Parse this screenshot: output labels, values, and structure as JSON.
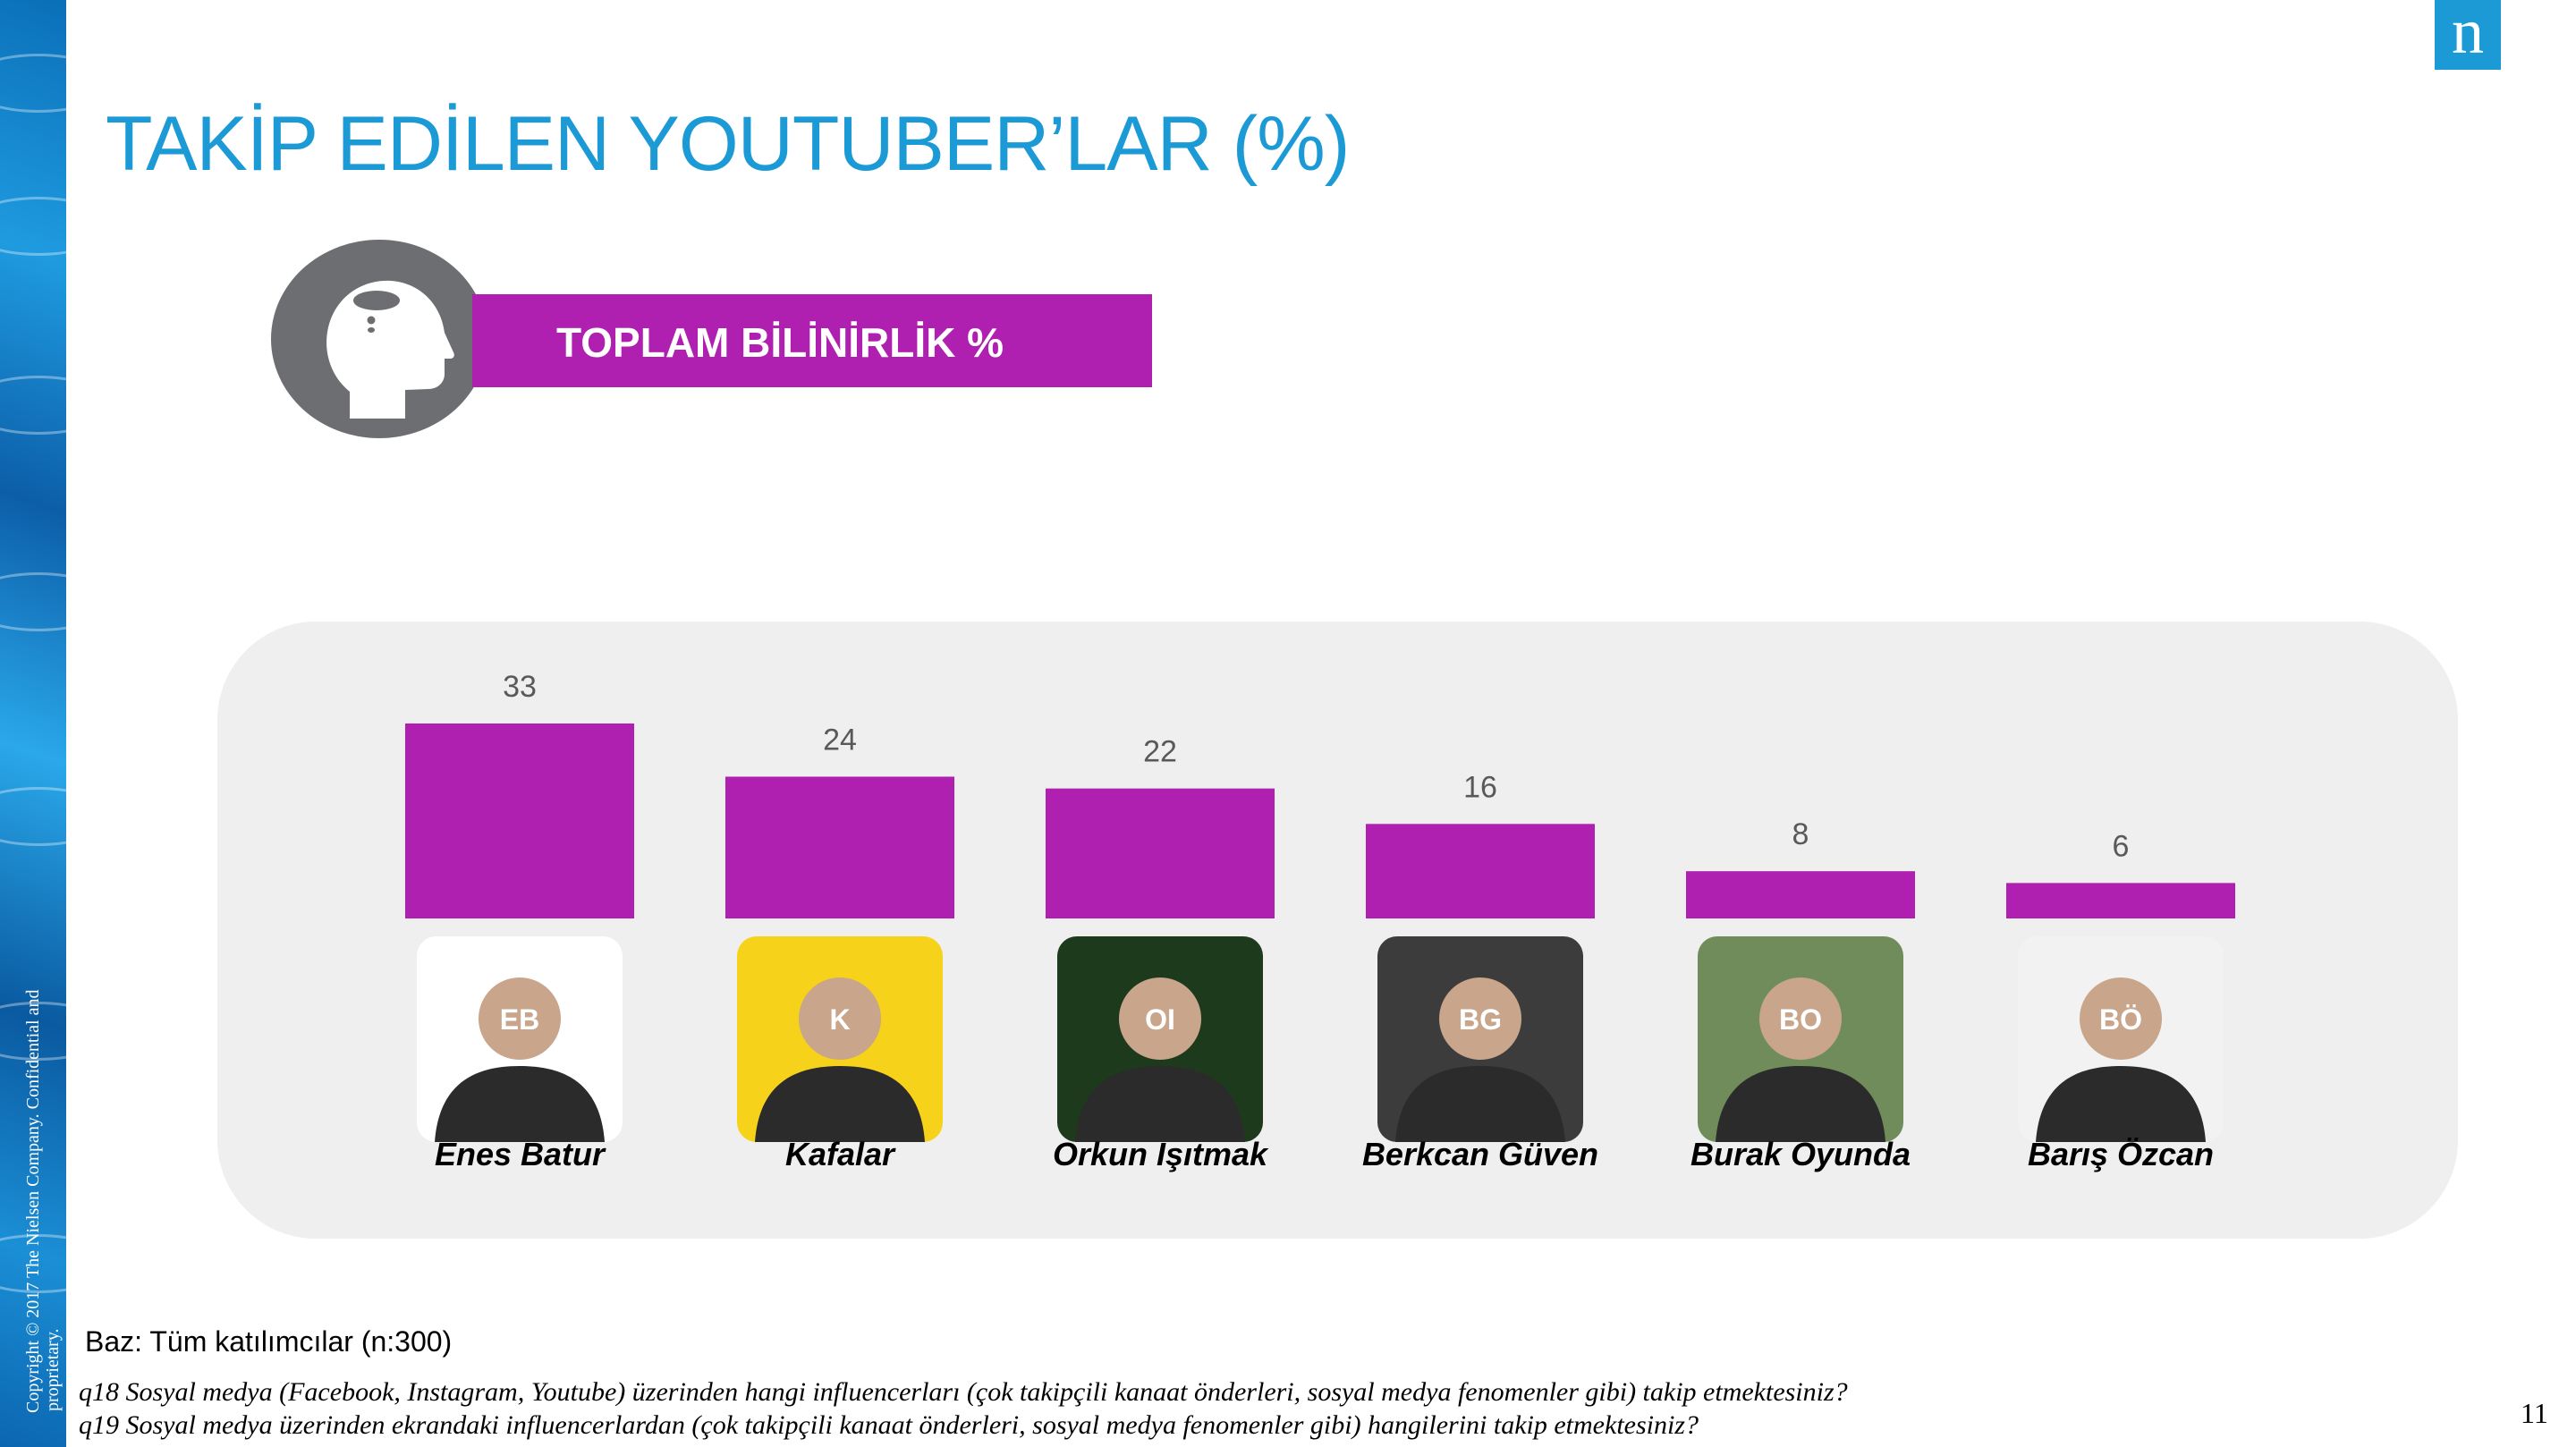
{
  "slide": {
    "title": "TAKİP EDİLEN YOUTUBER’LAR (%)",
    "banner_label": "TOPLAM BİLİNİRLİK %",
    "logo_letter": "n",
    "page_number": "11",
    "copyright": [
      "Copyright © 2017 The Nielsen Company. Confidential and",
      "proprietary."
    ],
    "base_note": "Baz: Tüm katılımcılar (n:300)",
    "footnotes": [
      "q18 Sosyal medya (Facebook, Instagram, Youtube) üzerinden hangi influencerları (çok takipçili kanaat önderleri, sosyal medya fenomenler gibi) takip etmektesiniz?",
      "q19 Sosyal medya üzerinden ekrandaki influencerlardan (çok takipçili kanaat önderleri, sosyal medya fenomenler gibi) hangilerini takip etmektesiniz?"
    ],
    "colors": {
      "accent_blue": "#1b9ad6",
      "bar_magenta": "#b020b0",
      "panel_grey": "#efefef",
      "icon_grey": "#6d6e71"
    },
    "icons": [
      "head-thought-icon",
      "nielsen-logo"
    ]
  },
  "chart_data": {
    "type": "bar",
    "title": "TOPLAM BİLİNİRLİK %",
    "categories": [
      "Enes Batur",
      "Kafalar",
      "Orkun Işıtmak",
      "Berkcan Güven",
      "Burak Oyunda",
      "Barış Özcan"
    ],
    "values": [
      33,
      24,
      22,
      16,
      8,
      6
    ],
    "xlabel": "",
    "ylabel": "",
    "ylim": [
      0,
      33
    ],
    "grid": false,
    "legend": "none",
    "data_labels": true,
    "bar_color": "#b020b0",
    "photo_backgrounds": [
      "#ffffff",
      "#f7d21a",
      "#1d3a1d",
      "#3c3c3c",
      "#6f8c5a",
      "#f2f2f2"
    ]
  }
}
